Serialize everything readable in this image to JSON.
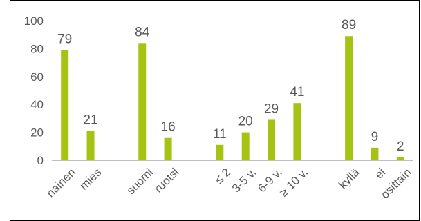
{
  "chart_data": {
    "type": "bar",
    "categories": [
      "nainen",
      "mies",
      "",
      "suomi",
      "ruotsi",
      "",
      "≤ 2",
      "3-5 v.",
      "6-9 v.",
      "≥ 10 v.",
      "",
      "kyllä",
      "ei",
      "osittain"
    ],
    "values": [
      79,
      21,
      null,
      84,
      16,
      null,
      11,
      20,
      29,
      41,
      null,
      89,
      9,
      2
    ],
    "data_labels": [
      "79",
      "21",
      "",
      "84",
      "16",
      "",
      "11",
      "20",
      "29",
      "41",
      "",
      "89",
      "9",
      "2"
    ],
    "y_ticks": [
      "0",
      "20",
      "40",
      "60",
      "80",
      "100"
    ],
    "ylim": [
      0,
      100
    ],
    "title": "",
    "xlabel": "",
    "ylabel": "",
    "grid": false,
    "legend": "none",
    "bar_color": "#a5c313",
    "axis_color": "#bfbfbf",
    "text_color": "#595959",
    "border_color": "#000000"
  }
}
